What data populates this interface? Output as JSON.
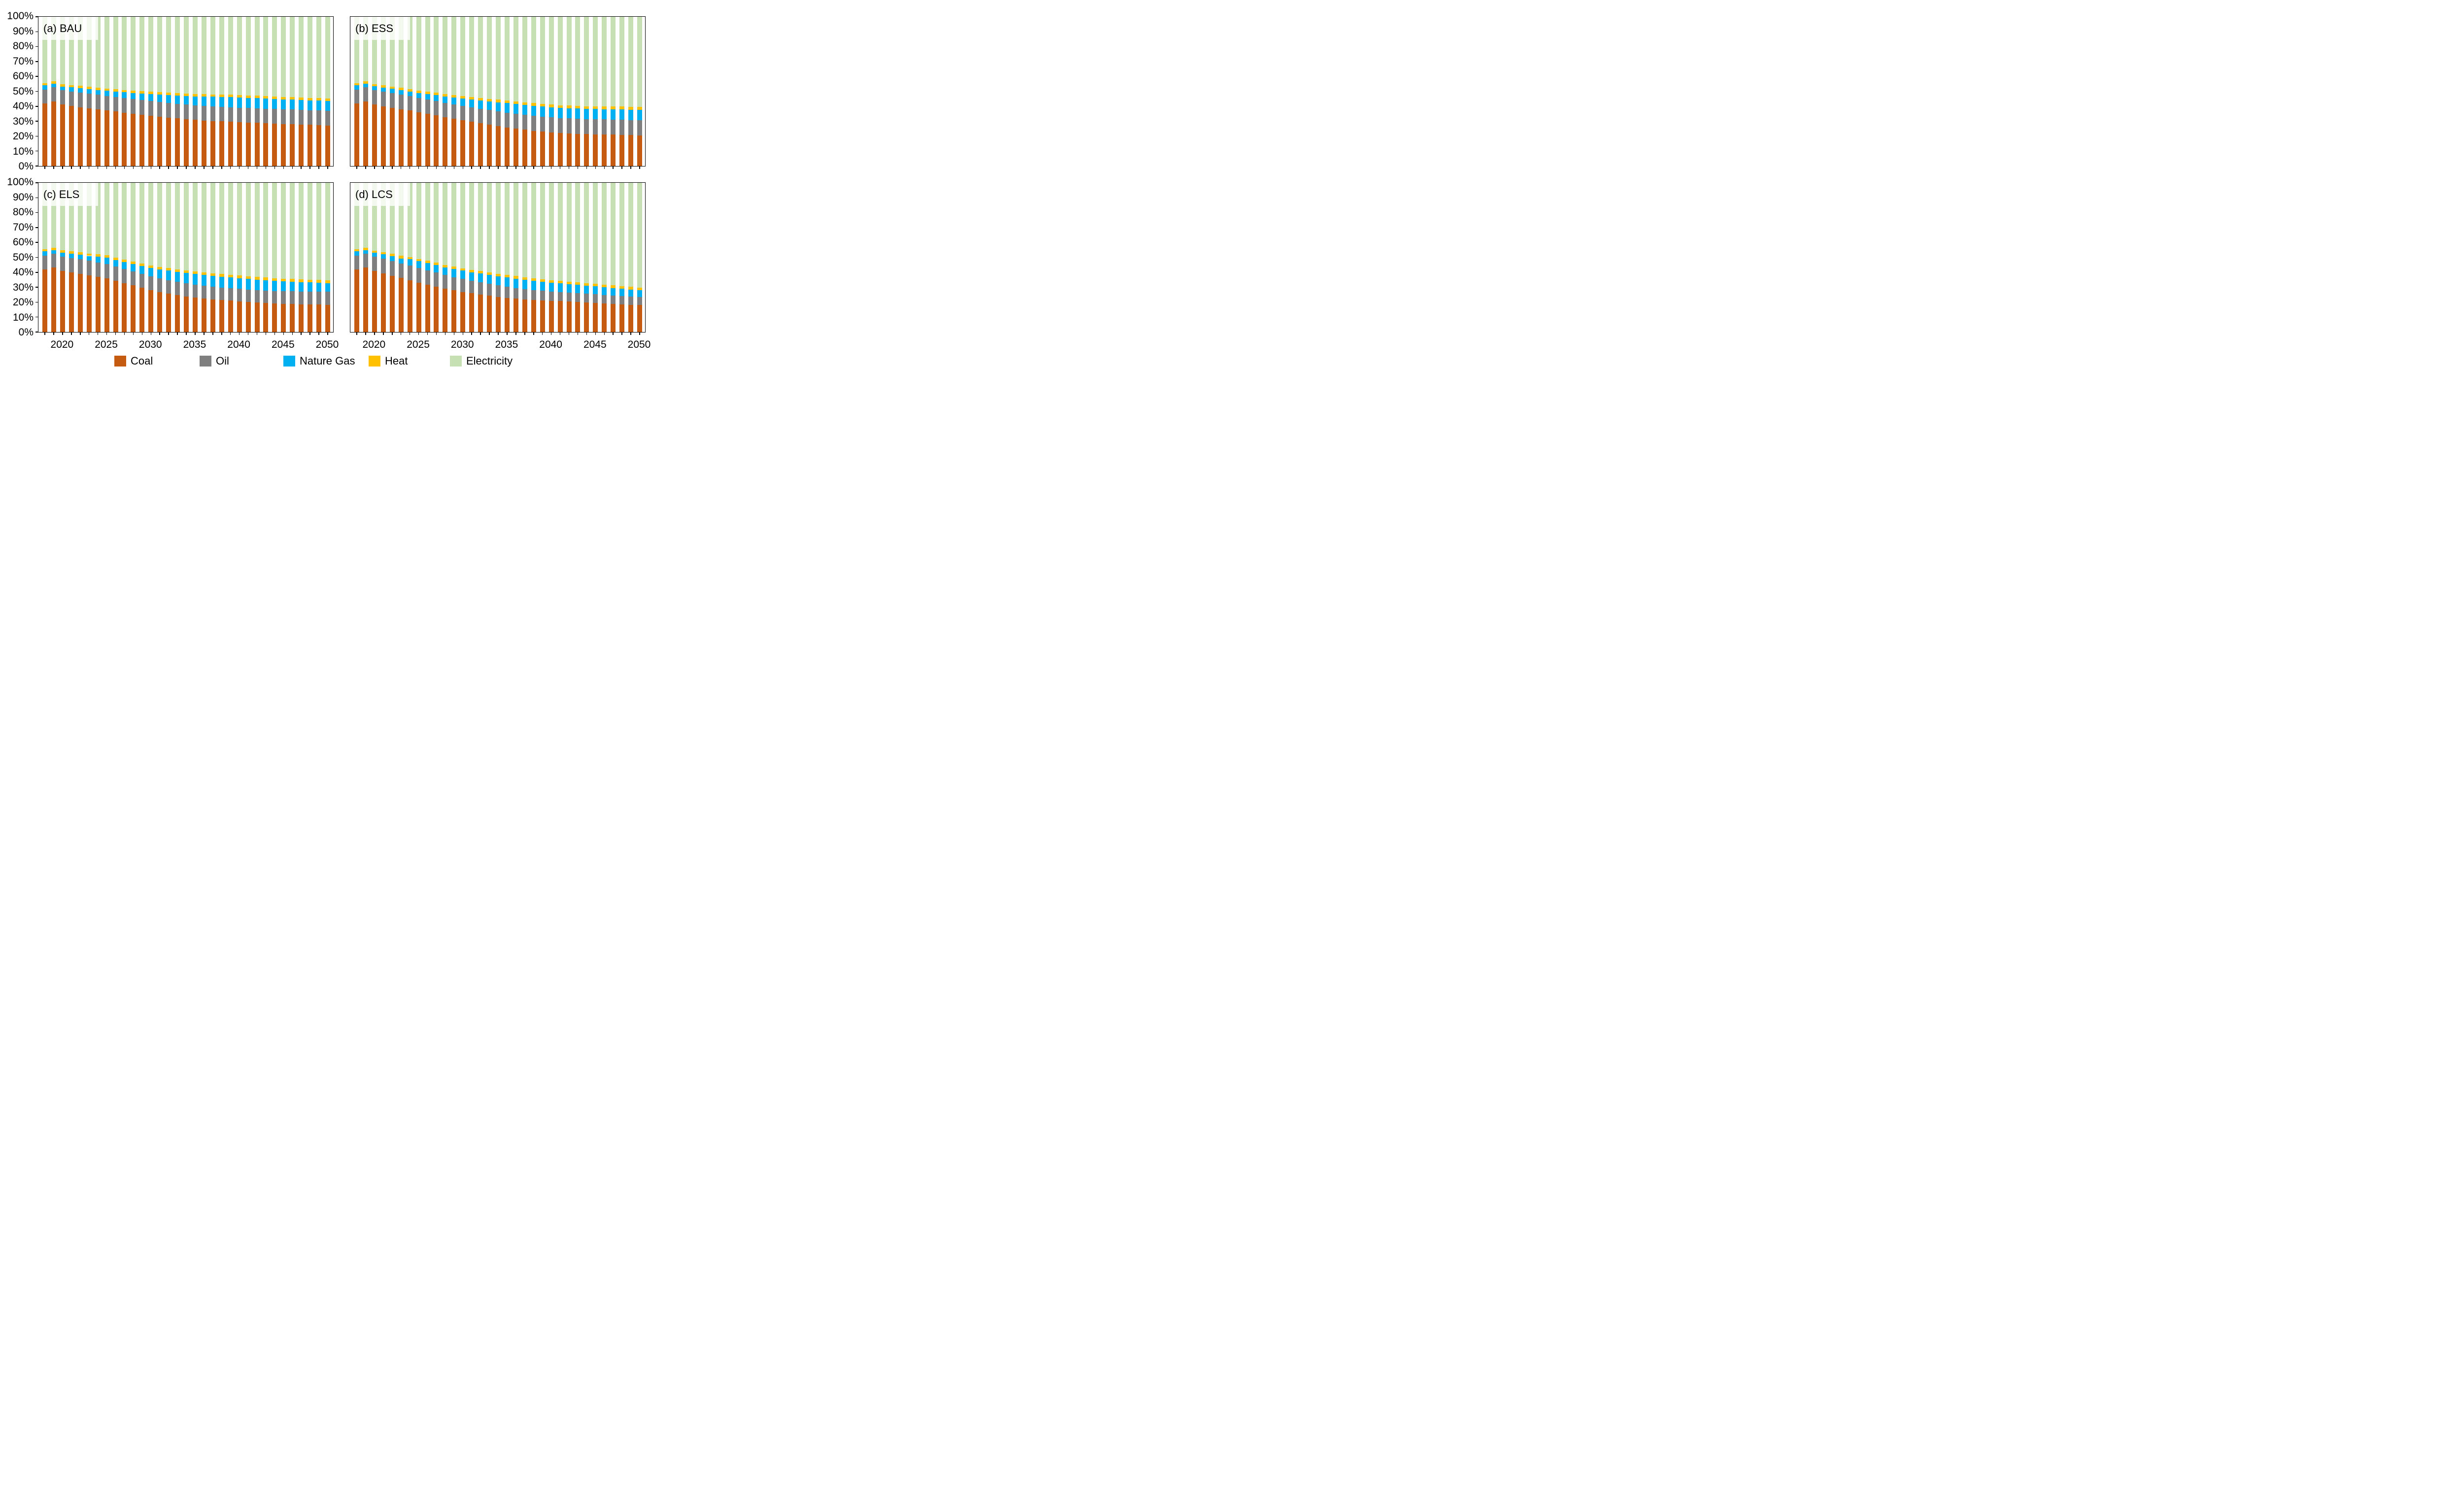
{
  "figure": {
    "background": "#FFFFFF",
    "frame_color": "#000000",
    "title_box_color": "rgba(255,255,255,0.8)"
  },
  "axes": {
    "y_tick_labels": [
      "100%",
      "90%",
      "80%",
      "70%",
      "60%",
      "50%",
      "40%",
      "30%",
      "20%",
      "10%",
      "0%"
    ],
    "x_tick_labels": [
      "2020",
      "2025",
      "2030",
      "2035",
      "2040",
      "2045",
      "2050"
    ],
    "x_tick_years": [
      2020,
      2025,
      2030,
      2035,
      2040,
      2045,
      2050
    ],
    "ylim": [
      0,
      100
    ],
    "grid": false
  },
  "legend": {
    "position": "bottom",
    "items": [
      {
        "name": "coal",
        "label": "Coal",
        "color": "#C55A11"
      },
      {
        "name": "oil",
        "label": "Oil",
        "color": "#7F7F7F"
      },
      {
        "name": "nature-gas",
        "label": "Nature Gas",
        "color": "#00B0F0"
      },
      {
        "name": "heat",
        "label": "Heat",
        "color": "#FFC000"
      },
      {
        "name": "electricity",
        "label": "Electricity",
        "color": "#C6E0B4"
      }
    ]
  },
  "chart_data": [
    {
      "type": "bar",
      "stacked": true,
      "percent": true,
      "title": "(a) BAU",
      "ylim": [
        0,
        100
      ],
      "x": [
        2018,
        2019,
        2020,
        2021,
        2022,
        2023,
        2024,
        2025,
        2026,
        2027,
        2028,
        2029,
        2030,
        2031,
        2032,
        2033,
        2034,
        2035,
        2036,
        2037,
        2038,
        2039,
        2040,
        2041,
        2042,
        2043,
        2044,
        2045,
        2046,
        2047,
        2048,
        2049,
        2050
      ],
      "series": [
        {
          "name": "Coal",
          "color": "#C55A11",
          "values": [
            42.0,
            43.2,
            41.1,
            40.3,
            39.4,
            38.7,
            37.9,
            37.2,
            36.5,
            35.8,
            35.1,
            34.4,
            33.7,
            33.1,
            32.5,
            31.9,
            31.4,
            30.9,
            30.5,
            30.2,
            29.9,
            29.6,
            29.3,
            29.1,
            28.9,
            28.6,
            28.4,
            28.2,
            28.0,
            27.8,
            27.6,
            27.4,
            27.2
          ]
        },
        {
          "name": "Oil",
          "color": "#7F7F7F",
          "values": [
            9.2,
            9.5,
            9.6,
            9.7,
            9.8,
            9.7,
            9.8,
            9.8,
            9.8,
            9.8,
            9.8,
            9.8,
            9.8,
            9.8,
            9.8,
            9.8,
            9.8,
            9.8,
            9.8,
            9.8,
            9.8,
            9.8,
            9.8,
            9.8,
            9.8,
            9.8,
            9.8,
            9.8,
            9.8,
            9.8,
            9.8,
            9.8,
            9.8
          ]
        },
        {
          "name": "Nature Gas",
          "color": "#00B0F0",
          "values": [
            2.8,
            2.4,
            2.6,
            2.7,
            3.0,
            3.1,
            3.2,
            3.4,
            3.6,
            3.8,
            4.0,
            4.3,
            4.6,
            4.9,
            5.2,
            5.5,
            5.8,
            6.0,
            6.2,
            6.4,
            6.6,
            6.7,
            6.7,
            6.7,
            6.7,
            6.7,
            6.7,
            6.6,
            6.6,
            6.6,
            6.6,
            6.6,
            6.6
          ]
        },
        {
          "name": "Heat",
          "color": "#FFC000",
          "values": [
            1.5,
            1.6,
            1.5,
            1.5,
            1.5,
            1.5,
            1.5,
            1.5,
            1.5,
            1.5,
            1.5,
            1.6,
            1.6,
            1.6,
            1.6,
            1.6,
            1.6,
            1.6,
            1.6,
            1.6,
            1.6,
            1.6,
            1.6,
            1.6,
            1.7,
            1.7,
            1.7,
            1.7,
            1.7,
            1.7,
            1.7,
            1.7,
            1.7
          ]
        },
        {
          "name": "Electricity",
          "color": "#C6E0B4",
          "values": [
            44.5,
            43.3,
            45.2,
            45.8,
            46.3,
            47.0,
            47.6,
            48.1,
            48.6,
            49.1,
            49.6,
            49.9,
            50.3,
            50.6,
            50.9,
            51.2,
            51.4,
            51.7,
            51.9,
            52.0,
            52.1,
            52.3,
            52.6,
            52.8,
            53.0,
            53.3,
            53.4,
            53.7,
            53.9,
            54.1,
            54.3,
            54.5,
            54.7
          ]
        }
      ]
    },
    {
      "type": "bar",
      "stacked": true,
      "percent": true,
      "title": "(b) ESS",
      "ylim": [
        0,
        100
      ],
      "x": [
        2018,
        2019,
        2020,
        2021,
        2022,
        2023,
        2024,
        2025,
        2026,
        2027,
        2028,
        2029,
        2030,
        2031,
        2032,
        2033,
        2034,
        2035,
        2036,
        2037,
        2038,
        2039,
        2040,
        2041,
        2042,
        2043,
        2044,
        2045,
        2046,
        2047,
        2048,
        2049,
        2050
      ],
      "series": [
        {
          "name": "Coal",
          "color": "#C55A11",
          "values": [
            42.0,
            43.2,
            41.2,
            40.0,
            39.1,
            38.1,
            37.2,
            36.1,
            35.0,
            33.9,
            32.8,
            31.7,
            30.6,
            29.6,
            28.6,
            27.6,
            26.7,
            25.8,
            25.0,
            24.3,
            23.6,
            23.0,
            22.5,
            22.0,
            21.8,
            21.6,
            21.4,
            21.2,
            21.1,
            21.0,
            20.9,
            20.7,
            20.6
          ]
        },
        {
          "name": "Oil",
          "color": "#7F7F7F",
          "values": [
            9.2,
            9.5,
            9.7,
            9.8,
            9.8,
            9.8,
            9.6,
            9.5,
            9.5,
            9.6,
            9.6,
            9.7,
            9.7,
            9.8,
            9.8,
            9.9,
            9.9,
            10.0,
            10.0,
            10.0,
            10.1,
            10.1,
            10.1,
            10.1,
            10.1,
            10.1,
            10.1,
            10.1,
            10.1,
            10.1,
            10.1,
            10.1,
            10.1
          ]
        },
        {
          "name": "Nature Gas",
          "color": "#00B0F0",
          "values": [
            2.8,
            2.4,
            2.5,
            2.8,
            2.9,
            3.0,
            3.1,
            3.4,
            3.7,
            4.0,
            4.3,
            4.6,
            4.9,
            5.2,
            5.5,
            5.8,
            6.1,
            6.3,
            6.5,
            6.6,
            6.7,
            6.8,
            6.8,
            6.8,
            6.8,
            6.8,
            6.8,
            6.9,
            6.9,
            6.9,
            6.9,
            6.9,
            6.9
          ]
        },
        {
          "name": "Heat",
          "color": "#FFC000",
          "values": [
            1.5,
            1.6,
            1.5,
            1.5,
            1.5,
            1.5,
            1.6,
            1.6,
            1.6,
            1.6,
            1.6,
            1.6,
            1.7,
            1.7,
            1.7,
            1.7,
            1.7,
            1.7,
            1.7,
            1.8,
            1.8,
            1.8,
            1.8,
            1.8,
            1.8,
            1.8,
            1.8,
            1.8,
            1.8,
            1.9,
            1.9,
            1.9,
            1.9
          ]
        },
        {
          "name": "Electricity",
          "color": "#C6E0B4",
          "values": [
            44.5,
            43.3,
            45.1,
            45.9,
            46.7,
            47.6,
            48.5,
            49.4,
            50.2,
            50.9,
            51.7,
            52.4,
            53.1,
            53.7,
            54.4,
            55.0,
            55.6,
            56.2,
            56.8,
            57.3,
            57.8,
            58.3,
            58.8,
            59.3,
            59.5,
            59.7,
            59.9,
            60.0,
            60.1,
            60.1,
            60.2,
            60.4,
            60.5
          ]
        }
      ]
    },
    {
      "type": "bar",
      "stacked": true,
      "percent": true,
      "title": "(c) ELS",
      "ylim": [
        0,
        100
      ],
      "x": [
        2018,
        2019,
        2020,
        2021,
        2022,
        2023,
        2024,
        2025,
        2026,
        2027,
        2028,
        2029,
        2030,
        2031,
        2032,
        2033,
        2034,
        2035,
        2036,
        2037,
        2038,
        2039,
        2040,
        2041,
        2042,
        2043,
        2044,
        2045,
        2046,
        2047,
        2048,
        2049,
        2050
      ],
      "series": [
        {
          "name": "Coal",
          "color": "#C55A11",
          "values": [
            42.0,
            43.1,
            41.0,
            40.0,
            39.0,
            38.0,
            37.1,
            36.1,
            34.4,
            32.8,
            31.2,
            29.6,
            28.1,
            26.9,
            25.8,
            24.8,
            23.9,
            23.1,
            22.4,
            21.9,
            21.4,
            21.0,
            20.5,
            20.1,
            19.7,
            19.4,
            19.1,
            18.9,
            18.8,
            18.6,
            18.5,
            18.4,
            18.3
          ]
        },
        {
          "name": "Oil",
          "color": "#7F7F7F",
          "values": [
            9.2,
            9.3,
            9.5,
            9.6,
            9.7,
            9.7,
            9.6,
            9.6,
            9.6,
            9.5,
            9.4,
            9.3,
            9.2,
            9.1,
            9.0,
            8.9,
            8.8,
            8.7,
            8.6,
            8.5,
            8.4,
            8.4,
            8.4,
            8.4,
            8.4,
            8.4,
            8.4,
            8.5,
            8.5,
            8.6,
            8.6,
            8.7,
            8.7
          ]
        },
        {
          "name": "Nature Gas",
          "color": "#00B0F0",
          "values": [
            2.8,
            2.4,
            2.7,
            2.8,
            3.2,
            3.3,
            3.7,
            4.0,
            4.3,
            4.6,
            4.9,
            5.3,
            5.7,
            6.0,
            6.3,
            6.6,
            6.9,
            7.1,
            7.2,
            7.3,
            7.3,
            7.3,
            7.2,
            7.1,
            7.0,
            6.9,
            6.8,
            6.6,
            6.4,
            6.2,
            6.1,
            5.9,
            5.8
          ]
        },
        {
          "name": "Heat",
          "color": "#FFC000",
          "values": [
            1.3,
            1.6,
            1.5,
            1.6,
            1.6,
            1.6,
            1.6,
            1.7,
            1.7,
            1.7,
            1.7,
            1.7,
            1.7,
            1.7,
            1.7,
            1.7,
            1.7,
            1.7,
            1.7,
            1.7,
            1.7,
            1.7,
            1.8,
            1.8,
            1.8,
            1.8,
            1.8,
            1.8,
            1.8,
            1.9,
            1.9,
            1.9,
            1.9
          ]
        },
        {
          "name": "Electricity",
          "color": "#C6E0B4",
          "values": [
            44.7,
            43.6,
            45.3,
            46.0,
            46.5,
            47.4,
            48.0,
            48.6,
            50.0,
            51.4,
            52.8,
            54.1,
            55.3,
            56.3,
            57.2,
            58.0,
            58.7,
            59.4,
            60.1,
            60.6,
            61.2,
            61.6,
            62.2,
            62.6,
            63.1,
            63.5,
            63.9,
            64.2,
            64.5,
            64.8,
            64.9,
            65.1,
            65.3
          ]
        }
      ]
    },
    {
      "type": "bar",
      "stacked": true,
      "percent": true,
      "title": "(d) LCS",
      "ylim": [
        0,
        100
      ],
      "x": [
        2018,
        2019,
        2020,
        2021,
        2022,
        2023,
        2024,
        2025,
        2026,
        2027,
        2028,
        2029,
        2030,
        2031,
        2032,
        2033,
        2034,
        2035,
        2036,
        2037,
        2038,
        2039,
        2040,
        2041,
        2042,
        2043,
        2044,
        2045,
        2046,
        2047,
        2048,
        2049,
        2050
      ],
      "series": [
        {
          "name": "Coal",
          "color": "#C55A11",
          "values": [
            42.0,
            43.1,
            41.0,
            39.3,
            37.6,
            36.2,
            34.7,
            33.1,
            31.8,
            30.5,
            29.2,
            28.0,
            26.9,
            26.0,
            25.1,
            24.3,
            23.6,
            22.9,
            22.3,
            21.8,
            21.4,
            21.0,
            20.8,
            20.7,
            20.4,
            20.1,
            19.8,
            19.5,
            19.2,
            18.9,
            18.6,
            18.3,
            18.0
          ]
        },
        {
          "name": "Oil",
          "color": "#7F7F7F",
          "values": [
            9.2,
            9.3,
            9.5,
            9.8,
            9.9,
            9.7,
            9.7,
            9.8,
            9.5,
            9.3,
            9.0,
            8.8,
            8.6,
            8.3,
            8.1,
            7.9,
            7.6,
            7.4,
            7.2,
            7.0,
            6.8,
            6.6,
            6.4,
            6.1,
            6.0,
            5.9,
            5.9,
            5.8,
            5.7,
            5.6,
            5.5,
            5.5,
            5.4
          ]
        },
        {
          "name": "Nature Gas",
          "color": "#00B0F0",
          "values": [
            2.8,
            2.4,
            2.7,
            2.9,
            3.4,
            3.4,
            4.3,
            4.5,
            4.8,
            5.0,
            5.2,
            5.4,
            5.6,
            5.8,
            6.0,
            6.1,
            6.2,
            6.3,
            6.3,
            6.2,
            6.1,
            6.0,
            5.9,
            5.9,
            5.7,
            5.6,
            5.4,
            5.3,
            5.1,
            5.0,
            4.9,
            4.7,
            4.6
          ]
        },
        {
          "name": "Heat",
          "color": "#FFC000",
          "values": [
            1.3,
            1.6,
            1.3,
            1.4,
            1.5,
            1.7,
            1.5,
            1.6,
            1.6,
            1.6,
            1.6,
            1.6,
            1.6,
            1.6,
            1.6,
            1.6,
            1.6,
            1.7,
            1.7,
            1.7,
            1.7,
            1.7,
            1.7,
            1.7,
            1.7,
            1.7,
            1.7,
            1.8,
            1.8,
            1.8,
            1.8,
            1.8,
            1.8
          ]
        },
        {
          "name": "Electricity",
          "color": "#C6E0B4",
          "values": [
            44.7,
            43.6,
            45.5,
            46.6,
            47.6,
            49.0,
            49.8,
            51.0,
            52.3,
            53.6,
            55.0,
            56.2,
            57.3,
            58.3,
            59.2,
            60.1,
            61.0,
            61.7,
            62.5,
            63.3,
            64.0,
            64.7,
            65.2,
            65.6,
            66.2,
            66.7,
            67.2,
            67.6,
            68.2,
            68.7,
            69.2,
            69.7,
            70.2
          ]
        }
      ]
    }
  ]
}
